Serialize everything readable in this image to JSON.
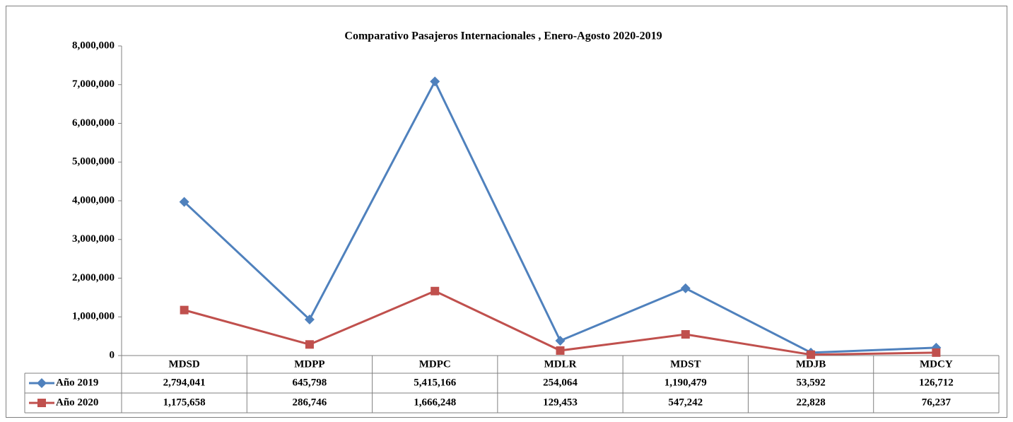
{
  "chart_data": {
    "type": "line",
    "stacked": true,
    "title": "Comparativo Pasajeros Internacionales , Enero-Agosto 2020-2019",
    "categories": [
      "MDSD",
      "MDPP",
      "MDPC",
      "MDLR",
      "MDST",
      "MDJB",
      "MDCY"
    ],
    "series": [
      {
        "name": "Año 2019",
        "color": "#4f81bd",
        "marker": "diamond",
        "values": [
          2794041,
          645798,
          5415166,
          254064,
          1190479,
          53592,
          126712
        ],
        "value_labels": [
          "2,794,041",
          "645,798",
          "5,415,166",
          "254,064",
          "1,190,479",
          "53,592",
          "126,712"
        ]
      },
      {
        "name": "Año 2020",
        "color": "#c0504d",
        "marker": "square",
        "values": [
          1175658,
          286746,
          1666248,
          129453,
          547242,
          22828,
          76237
        ],
        "value_labels": [
          "1,175,658",
          "286,746",
          "1,666,248",
          "129,453",
          "547,242",
          "22,828",
          "76,237"
        ]
      }
    ],
    "ylim": [
      0,
      8000000
    ],
    "yticks": [
      0,
      {
        "value": 1000000,
        "label": "1,000,000"
      },
      {
        "value": 2000000,
        "label": "2,000,000"
      },
      {
        "value": 3000000,
        "label": "3,000,000"
      },
      {
        "value": 4000000,
        "label": "4,000,000"
      },
      {
        "value": 5000000,
        "label": "5,000,000"
      },
      {
        "value": 6000000,
        "label": "6,000,000"
      },
      {
        "value": 7000000,
        "label": "7,000,000"
      },
      {
        "value": 8000000,
        "label": "8,000,000"
      }
    ],
    "grid": false
  }
}
